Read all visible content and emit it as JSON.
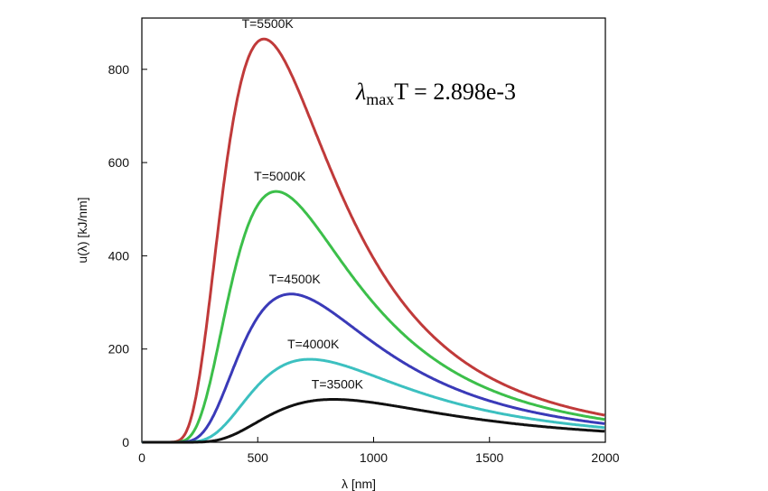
{
  "chart_data": {
    "type": "line",
    "xlabel": "λ [nm]",
    "ylabel": "u(λ) [kJ/nm]",
    "xlim": [
      0,
      2000
    ],
    "ylim": [
      0,
      900
    ],
    "x_ticks": [
      "0",
      "500",
      "1000",
      "1500",
      "2000"
    ],
    "y_ticks": [
      "0",
      "200",
      "400",
      "600",
      "800"
    ],
    "annotation": {
      "prefix": "λ",
      "subscript": "max",
      "rest": "T = 2.898e-3"
    },
    "grid": false,
    "series": [
      {
        "name": "T=5500K",
        "color": "#c03a3a",
        "T": 5500,
        "peak_x": 527,
        "peak_y": 865
      },
      {
        "name": "T=5000K",
        "color": "#3cbf4a",
        "T": 5000,
        "peak_x": 580,
        "peak_y": 538
      },
      {
        "name": "T=4500K",
        "color": "#3a3ab8",
        "T": 4500,
        "peak_x": 644,
        "peak_y": 318
      },
      {
        "name": "T=4000K",
        "color": "#3cc0c0",
        "T": 4000,
        "peak_x": 724,
        "peak_y": 178
      },
      {
        "name": "T=3500K",
        "color": "#111111",
        "T": 3500,
        "peak_x": 828,
        "peak_y": 92
      }
    ]
  }
}
